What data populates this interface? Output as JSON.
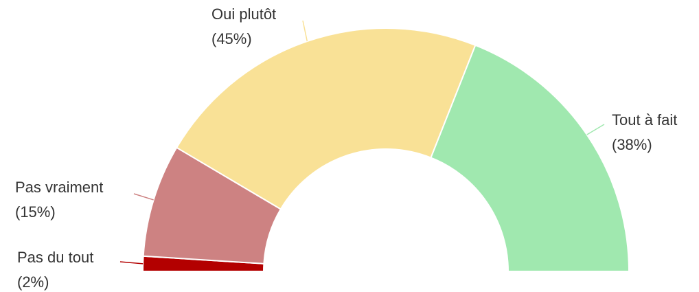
{
  "chart_data": {
    "type": "semi-donut",
    "categories": [
      "Pas du tout",
      "Pas vraiment",
      "Oui plutôt",
      "Tout à fait"
    ],
    "values": [
      2,
      15,
      45,
      38
    ],
    "value_labels": [
      "(2%)",
      "(15%)",
      "(45%)",
      "(38%)"
    ],
    "colors": [
      "#b30000",
      "#cd8282",
      "#f9e196",
      "#a0e8af"
    ]
  }
}
